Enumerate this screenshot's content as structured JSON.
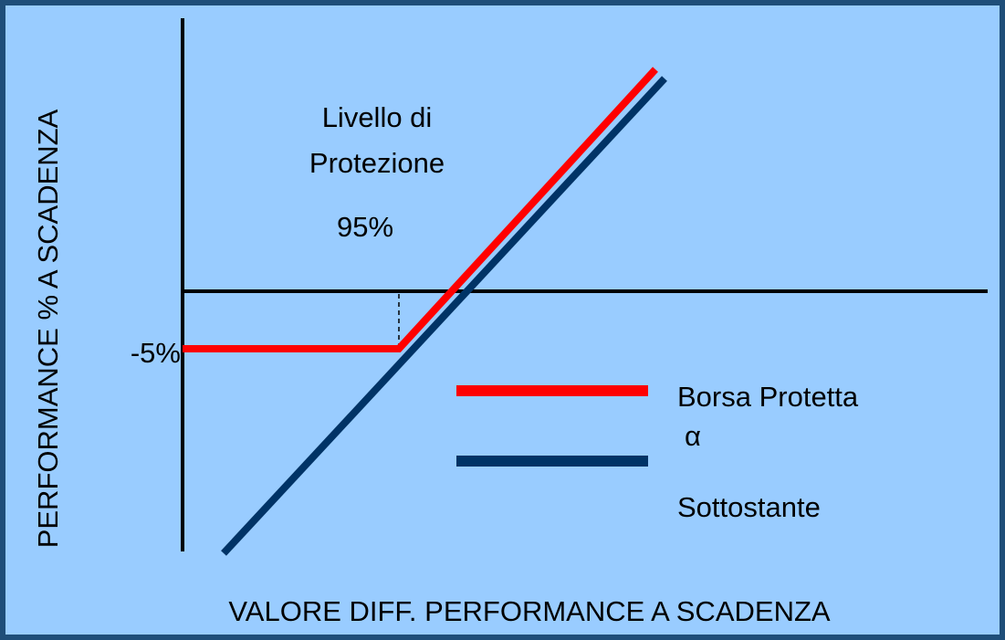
{
  "y_axis_label": "PERFORMANCE % A SCADENZA",
  "x_axis_label": "VALORE DIFF. PERFORMANCE A SCADENZA",
  "annotation": {
    "line1": "Livello di",
    "line2": "Protezione",
    "line3": "95%"
  },
  "floor_label": "-5%",
  "legend": {
    "items": [
      "Borsa Protetta",
      "α",
      "Sottostante"
    ]
  }
}
